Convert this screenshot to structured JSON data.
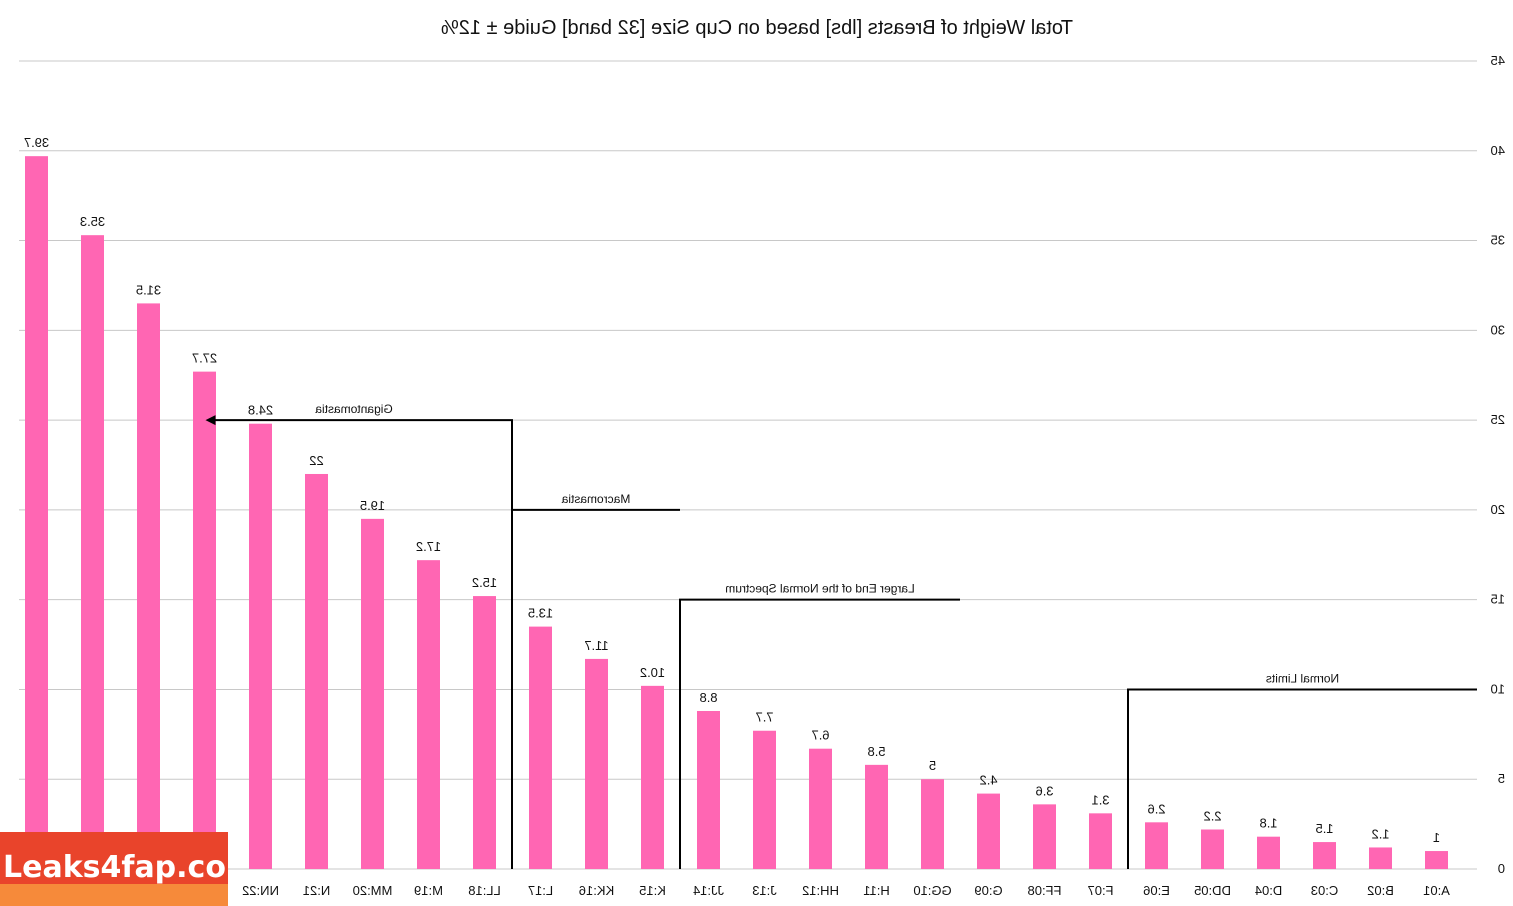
{
  "chart_data": {
    "type": "bar",
    "title": "Total Weight of Breasts [lbs] based on Cup Size [32 band] Guide ± 12%",
    "mirrored": true,
    "categories": [
      "A:01",
      "B:02",
      "C:03",
      "D:04",
      "DD:05",
      "E:06",
      "F:07",
      "FF:08",
      "G:09",
      "GG:10",
      "H:11",
      "HH:12",
      "J:13",
      "JJ:14",
      "K:15",
      "KK:16",
      "L:17",
      "LL:18",
      "M:19",
      "MM:20",
      "N:21",
      "NN:22",
      "",
      "",
      "",
      ""
    ],
    "values": [
      1,
      1.2,
      1.5,
      1.8,
      2.2,
      2.6,
      3.1,
      3.6,
      4.2,
      5,
      5.8,
      6.7,
      7.7,
      8.8,
      10.2,
      11.7,
      13.5,
      15.2,
      17.2,
      19.5,
      22,
      24.8,
      27.7,
      31.5,
      35.3,
      39.7
    ],
    "value_labels": [
      "1",
      "1.2",
      "1.5",
      "1.8",
      "2.2",
      "2.6",
      "3.1",
      "3.6",
      "4.2",
      "5",
      "5.8",
      "6.7",
      "7.7",
      "8.8",
      "10.2",
      "11.7",
      "13.5",
      "15.2",
      "17.2",
      "19.5",
      "22",
      "24.8",
      "27.7",
      "31.5",
      "35.3",
      "39.7"
    ],
    "ylim": [
      0,
      45
    ],
    "yticks": [
      "0",
      "5",
      "10",
      "15",
      "20",
      "25",
      "30",
      "35",
      "40",
      "45"
    ],
    "y_axis_side": "right",
    "grid": true,
    "bar_color": "#ff66b3",
    "annotations": [
      {
        "label": "Normal Limits",
        "level": 10,
        "from_category": 0,
        "to_category": 5
      },
      {
        "label": "Larger End of the Normal Spectrum",
        "level": 15,
        "from_category": 9,
        "to_category": 13
      },
      {
        "label": "Macromastia",
        "level": 20,
        "from_category": 14,
        "to_category": 16
      },
      {
        "label": "Gigantomastia",
        "level": 25,
        "from_category": 17,
        "to_category": 21
      }
    ]
  },
  "watermark": {
    "text": "Leaks4fap.com",
    "colors": {
      "main": "#e9442b",
      "band": "#f68a3a",
      "text": "#ffffff"
    }
  }
}
